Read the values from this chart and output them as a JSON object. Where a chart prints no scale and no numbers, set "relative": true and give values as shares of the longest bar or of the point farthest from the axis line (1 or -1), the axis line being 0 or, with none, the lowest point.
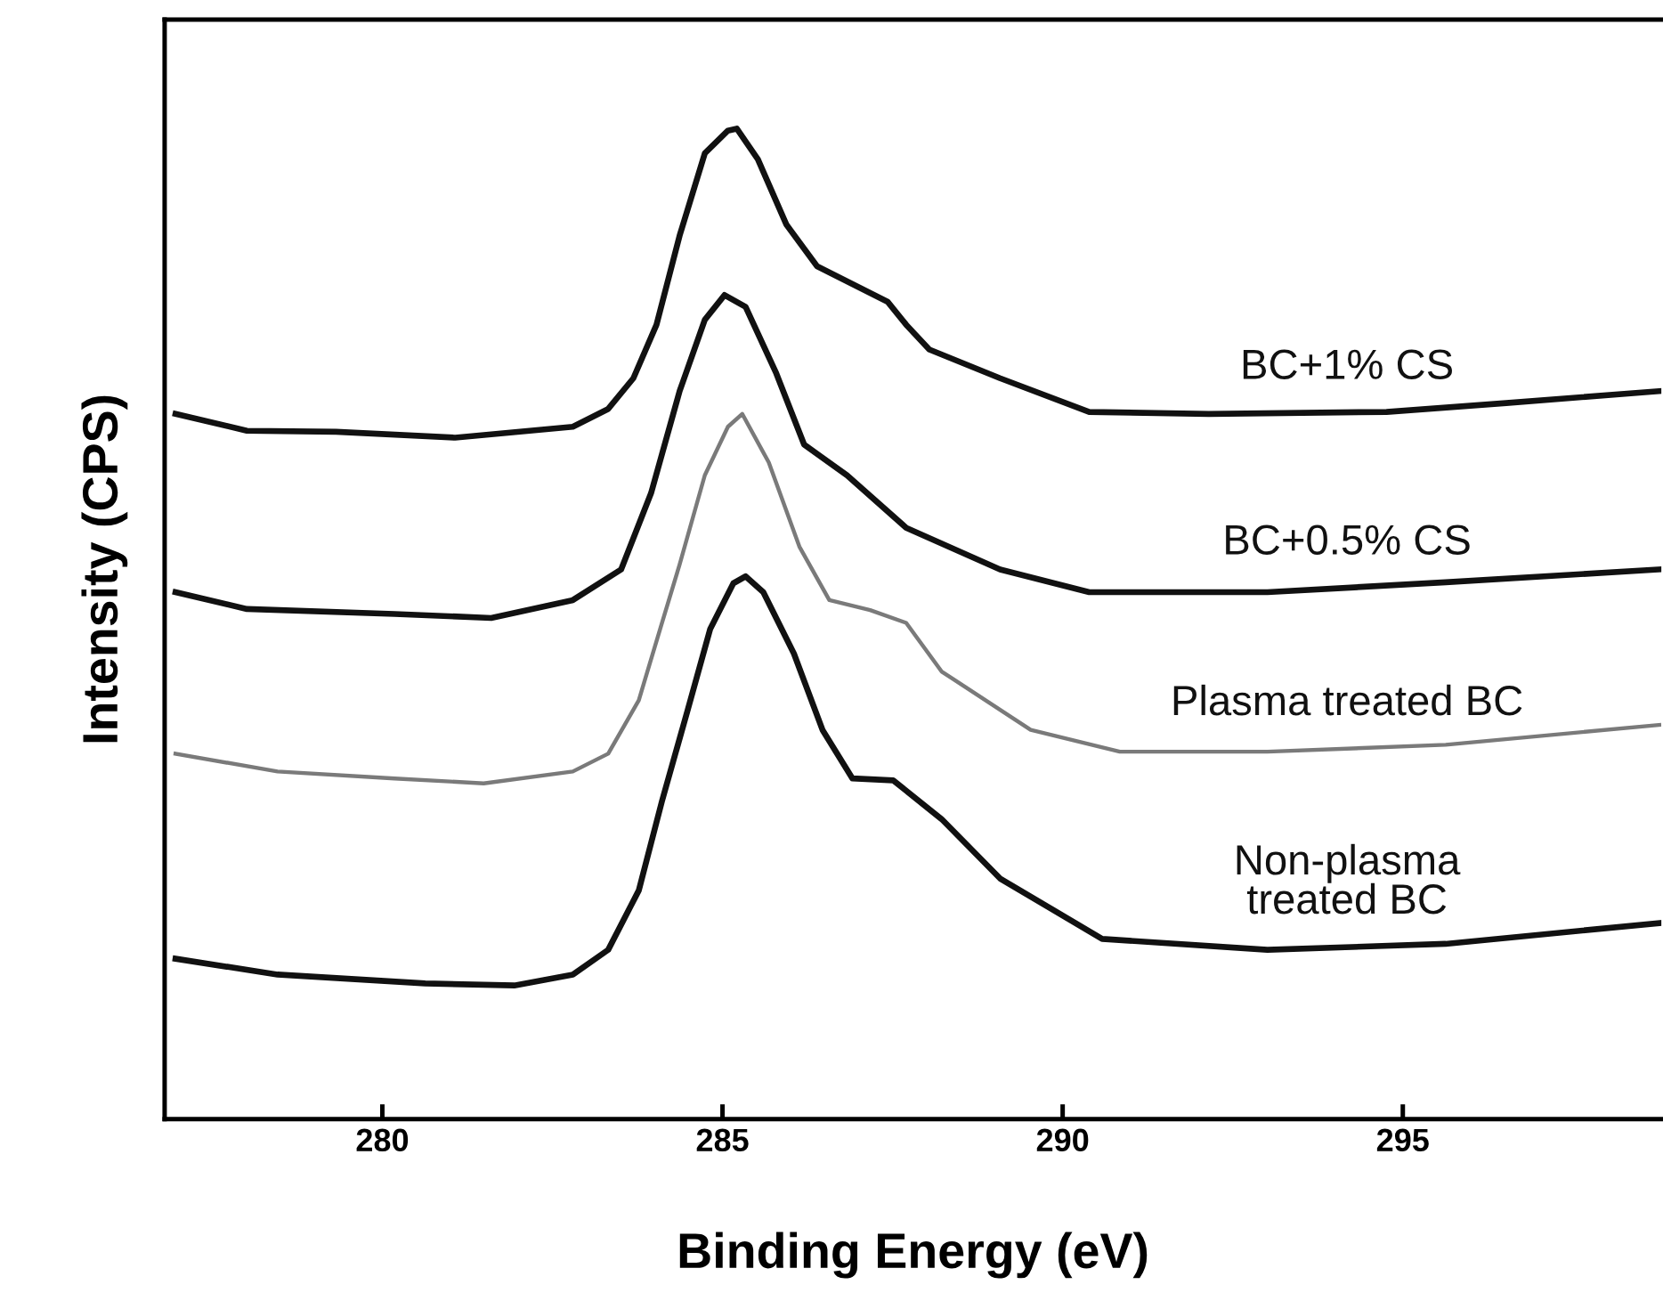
{
  "chart_data": {
    "type": "line",
    "relative": true,
    "xlabel": "Binding Energy (eV)",
    "ylabel": "Intensity (CPS)",
    "xlim": [
      276.8,
      298.8
    ],
    "xticks": [
      280,
      285,
      290,
      295
    ],
    "grid": false,
    "legend": false,
    "marker": "none",
    "line_style": "solid",
    "series": [
      {
        "name": "BC+1% CS",
        "color": "#111111",
        "x": [
          276.96,
          278.01,
          279.32,
          281.07,
          282.8,
          283.32,
          283.69,
          284.03,
          284.37,
          284.74,
          285.08,
          285.21,
          285.52,
          285.94,
          286.39,
          286.91,
          287.43,
          287.7,
          288.04,
          289.08,
          290.39,
          292.15,
          294.76,
          296.52,
          298.77
        ],
        "values": [
          0.712,
          0.695,
          0.694,
          0.688,
          0.699,
          0.717,
          0.748,
          0.802,
          0.892,
          0.975,
          0.998,
          1.0,
          0.969,
          0.903,
          0.861,
          0.843,
          0.825,
          0.802,
          0.777,
          0.748,
          0.714,
          0.712,
          0.714,
          0.723,
          0.735
        ]
      },
      {
        "name": "BC+0.5% CS",
        "color": "#111111",
        "x": [
          276.96,
          278.01,
          280.18,
          281.6,
          282.8,
          283.51,
          283.95,
          284.37,
          284.74,
          285.03,
          285.34,
          285.79,
          286.2,
          286.83,
          287.7,
          289.08,
          290.39,
          293.01,
          295.63,
          298.77
        ],
        "values": [
          0.532,
          0.515,
          0.51,
          0.506,
          0.524,
          0.555,
          0.632,
          0.735,
          0.807,
          0.832,
          0.82,
          0.753,
          0.681,
          0.65,
          0.597,
          0.555,
          0.532,
          0.532,
          0.542,
          0.555
        ]
      },
      {
        "name": "Plasma treated BC",
        "color": "#7a7a7a",
        "x": [
          276.96,
          278.46,
          280.18,
          281.49,
          282.8,
          283.32,
          283.77,
          284.11,
          284.37,
          284.74,
          285.08,
          285.29,
          285.68,
          286.13,
          286.57,
          287.17,
          287.7,
          288.22,
          289.53,
          290.84,
          293.01,
          295.63,
          298.77
        ],
        "values": [
          0.369,
          0.351,
          0.344,
          0.339,
          0.351,
          0.369,
          0.423,
          0.501,
          0.56,
          0.65,
          0.699,
          0.712,
          0.663,
          0.578,
          0.524,
          0.514,
          0.501,
          0.452,
          0.393,
          0.371,
          0.371,
          0.378,
          0.398
        ]
      },
      {
        "name": "Non-plasma\ntreated BC",
        "color": "#111111",
        "x": [
          276.96,
          278.46,
          280.63,
          281.94,
          282.8,
          283.32,
          283.77,
          284.11,
          284.48,
          284.82,
          285.16,
          285.34,
          285.6,
          286.05,
          286.47,
          286.91,
          287.51,
          288.22,
          289.08,
          290.58,
          293.01,
          295.63,
          298.77
        ],
        "values": [
          0.162,
          0.146,
          0.137,
          0.135,
          0.146,
          0.171,
          0.231,
          0.321,
          0.411,
          0.495,
          0.541,
          0.548,
          0.532,
          0.47,
          0.393,
          0.344,
          0.342,
          0.303,
          0.243,
          0.182,
          0.171,
          0.177,
          0.198
        ]
      }
    ]
  }
}
